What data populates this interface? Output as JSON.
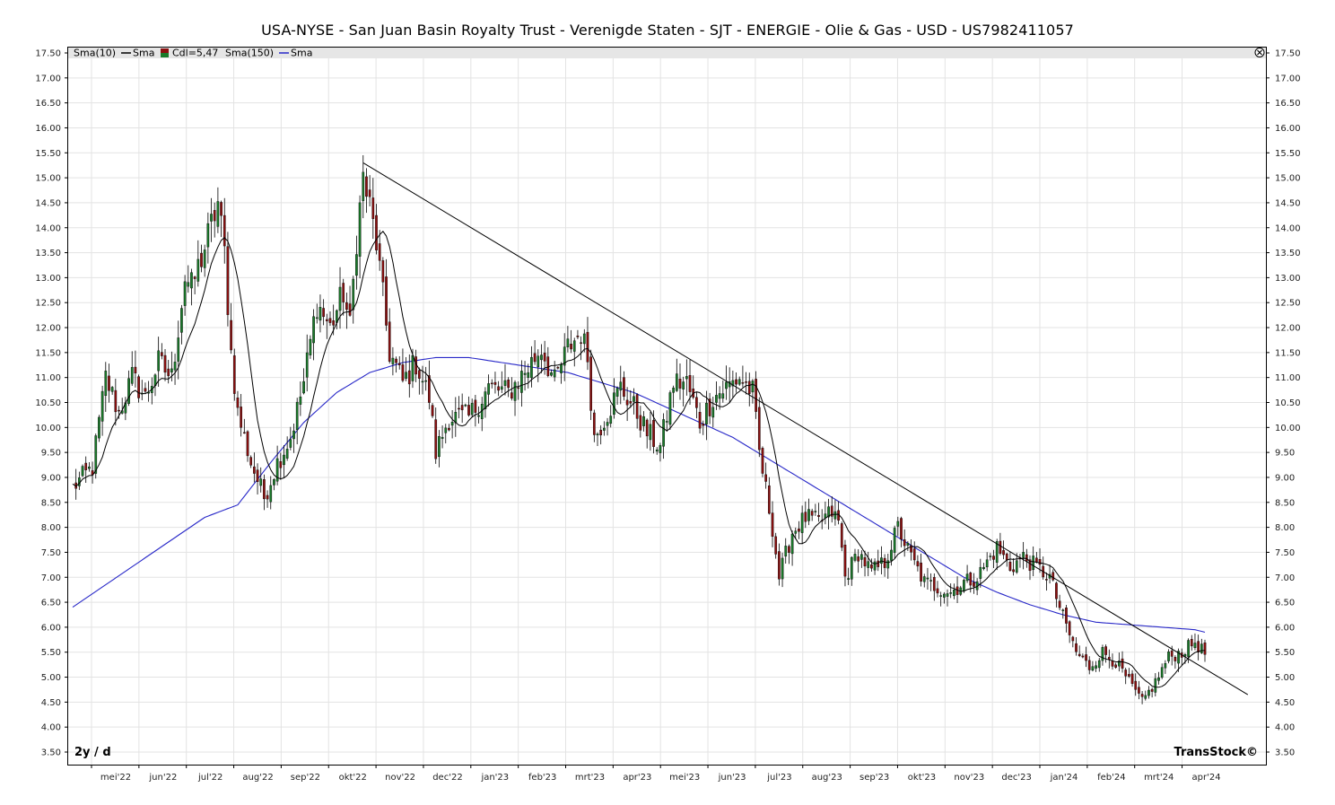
{
  "chart_data": {
    "type": "candlestick",
    "title": "USA-NYSE - San Juan Basin Royalty Trust - Verenigde Staten - SJT - ENERGIE - Olie & Gas - USD - US7982411057",
    "legend": [
      "Sma(10)",
      "Sma",
      "Cdl=5,47",
      "Sma(150)",
      "Sma"
    ],
    "period_label": "2y / d",
    "watermark": "TransStock©",
    "close_icon": "close-circle-icon",
    "ylim": [
      3.25,
      17.5
    ],
    "y_ticks": [
      "17.50",
      "17.00",
      "16.50",
      "16.00",
      "15.50",
      "15.00",
      "14.50",
      "14.00",
      "13.50",
      "13.00",
      "12.50",
      "12.00",
      "11.50",
      "11.00",
      "10.50",
      "10.00",
      "9.50",
      "9.00",
      "8.50",
      "8.00",
      "7.50",
      "7.00",
      "6.50",
      "6.00",
      "5.50",
      "5.00",
      "4.50",
      "4.00",
      "3.50"
    ],
    "x_ticks": [
      "mei'22",
      "jun'22",
      "jul'22",
      "aug'22",
      "sep'22",
      "okt'22",
      "nov'22",
      "dec'22",
      "jan'23",
      "feb'23",
      "mrt'23",
      "apr'23",
      "mei'23",
      "jun'23",
      "jul'23",
      "aug'23",
      "sep'23",
      "okt'23",
      "nov'23",
      "dec'23",
      "jan'24",
      "feb'24",
      "mrt'24",
      "apr'24"
    ],
    "colors": {
      "up": "#1a7a2a",
      "down": "#8b1010",
      "sma10": "#000000",
      "sma150": "#2828c8",
      "trendline": "#000000",
      "grid": "#e3e3e3"
    },
    "close_anchors": [
      [
        0,
        8.8
      ],
      [
        6,
        9.2
      ],
      [
        10,
        11.0
      ],
      [
        14,
        10.3
      ],
      [
        18,
        11.0
      ],
      [
        22,
        10.6
      ],
      [
        26,
        11.3
      ],
      [
        30,
        11.0
      ],
      [
        34,
        13.0
      ],
      [
        36,
        12.8
      ],
      [
        40,
        13.6
      ],
      [
        44,
        14.5
      ],
      [
        46,
        13.5
      ],
      [
        48,
        11.5
      ],
      [
        50,
        10.3
      ],
      [
        54,
        9.3
      ],
      [
        58,
        8.6
      ],
      [
        62,
        9.3
      ],
      [
        66,
        9.8
      ],
      [
        70,
        10.9
      ],
      [
        74,
        12.5
      ],
      [
        78,
        12.0
      ],
      [
        82,
        12.7
      ],
      [
        84,
        12.0
      ],
      [
        86,
        13.8
      ],
      [
        88,
        15.0
      ],
      [
        90,
        14.4
      ],
      [
        92,
        13.7
      ],
      [
        96,
        11.5
      ],
      [
        100,
        10.9
      ],
      [
        104,
        11.3
      ],
      [
        108,
        10.6
      ],
      [
        110,
        9.5
      ],
      [
        114,
        10.2
      ],
      [
        120,
        10.2
      ],
      [
        126,
        10.8
      ],
      [
        132,
        10.7
      ],
      [
        138,
        11.2
      ],
      [
        142,
        11.6
      ],
      [
        146,
        10.9
      ],
      [
        150,
        11.6
      ],
      [
        154,
        11.9
      ],
      [
        156,
        11.4
      ],
      [
        158,
        9.8
      ],
      [
        162,
        10.3
      ],
      [
        166,
        10.8
      ],
      [
        170,
        10.4
      ],
      [
        174,
        9.9
      ],
      [
        178,
        9.6
      ],
      [
        182,
        10.9
      ],
      [
        186,
        10.9
      ],
      [
        190,
        10.1
      ],
      [
        194,
        10.6
      ],
      [
        198,
        10.8
      ],
      [
        202,
        11.0
      ],
      [
        206,
        10.7
      ],
      [
        208,
        9.5
      ],
      [
        212,
        8.0
      ],
      [
        214,
        7.0
      ],
      [
        218,
        7.9
      ],
      [
        222,
        8.2
      ],
      [
        226,
        8.1
      ],
      [
        230,
        8.3
      ],
      [
        232,
        8.1
      ],
      [
        234,
        7.0
      ],
      [
        238,
        7.5
      ],
      [
        242,
        7.1
      ],
      [
        246,
        7.3
      ],
      [
        250,
        8.0
      ],
      [
        254,
        7.4
      ],
      [
        258,
        6.9
      ],
      [
        262,
        6.8
      ],
      [
        266,
        6.7
      ],
      [
        270,
        6.9
      ],
      [
        274,
        7.0
      ],
      [
        278,
        7.4
      ],
      [
        280,
        7.6
      ],
      [
        284,
        7.2
      ],
      [
        288,
        7.4
      ],
      [
        292,
        7.2
      ],
      [
        296,
        7.0
      ],
      [
        300,
        6.2
      ],
      [
        304,
        5.5
      ],
      [
        308,
        5.2
      ],
      [
        312,
        5.5
      ],
      [
        316,
        5.3
      ],
      [
        320,
        4.9
      ],
      [
        324,
        4.5
      ],
      [
        328,
        4.9
      ],
      [
        332,
        5.4
      ],
      [
        336,
        5.5
      ],
      [
        340,
        5.7
      ],
      [
        343,
        5.47
      ]
    ],
    "sma150_anchors": [
      [
        0,
        6.4
      ],
      [
        20,
        7.3
      ],
      [
        40,
        8.2
      ],
      [
        50,
        8.45
      ],
      [
        60,
        9.3
      ],
      [
        70,
        10.1
      ],
      [
        80,
        10.7
      ],
      [
        90,
        11.1
      ],
      [
        100,
        11.3
      ],
      [
        110,
        11.4
      ],
      [
        120,
        11.4
      ],
      [
        130,
        11.3
      ],
      [
        140,
        11.2
      ],
      [
        150,
        11.1
      ],
      [
        160,
        10.9
      ],
      [
        170,
        10.7
      ],
      [
        180,
        10.4
      ],
      [
        190,
        10.1
      ],
      [
        200,
        9.8
      ],
      [
        210,
        9.4
      ],
      [
        220,
        9.0
      ],
      [
        230,
        8.6
      ],
      [
        240,
        8.2
      ],
      [
        250,
        7.8
      ],
      [
        260,
        7.4
      ],
      [
        270,
        7.0
      ],
      [
        280,
        6.7
      ],
      [
        290,
        6.45
      ],
      [
        300,
        6.25
      ],
      [
        310,
        6.1
      ],
      [
        320,
        6.05
      ],
      [
        330,
        6.0
      ],
      [
        340,
        5.95
      ],
      [
        343,
        5.9
      ]
    ],
    "trendline": {
      "from": [
        88,
        15.3
      ],
      "to": [
        356,
        4.65
      ]
    }
  }
}
